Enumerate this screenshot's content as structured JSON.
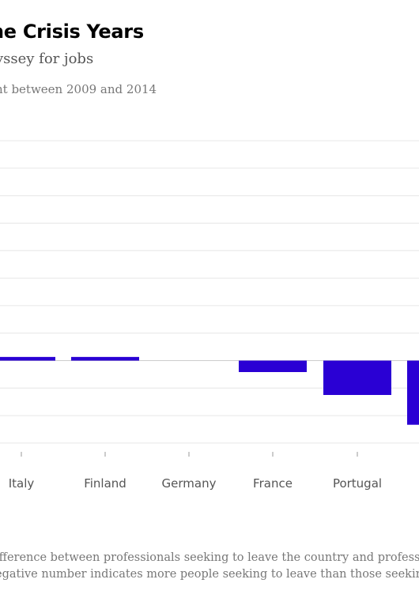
{
  "header": {
    "title": "he Crisis Years",
    "subtitle": "yssey for jobs",
    "description": "nt between 2009 and 2014"
  },
  "footnote": {
    "line1": "ifference between professionals seeking to leave the country and profess",
    "line2": "egative number indicates more people seeking to leave than those seekir"
  },
  "colors": {
    "bar": "#2a00d4",
    "grid": "#e6e6e6",
    "zero_line": "#cccccc",
    "tick_label": "#555555"
  },
  "chart_data": {
    "type": "bar",
    "categories": [
      "Italy",
      "Finland",
      "Germany",
      "France",
      "Portugal"
    ],
    "values": [
      0.4,
      0.4,
      0,
      -1.25,
      -3.75
    ],
    "partial_bar_value": -7.0,
    "ylim": [
      -10,
      26
    ],
    "grid_step": 3,
    "grid": true,
    "xlabel": "",
    "ylabel": ""
  }
}
